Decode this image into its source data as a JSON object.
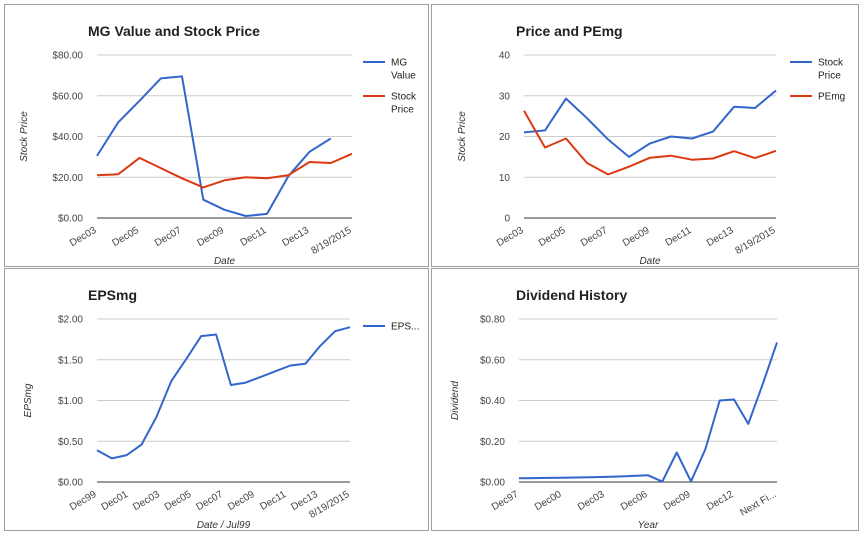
{
  "colors": {
    "blue": "#3366cc",
    "red": "#dc3912",
    "grid": "#cccccc"
  },
  "chart_data": [
    {
      "type": "line",
      "title": "MG Value and Stock Price",
      "xlabel": "Date",
      "ylabel": "Stock Price",
      "ylim": [
        0,
        80
      ],
      "yticks": [
        "$0.00",
        "$20.00",
        "$40.00",
        "$60.00",
        "$80.00"
      ],
      "xticks": [
        "Dec03",
        "Dec05",
        "Dec07",
        "Dec09",
        "Dec11",
        "Dec13",
        "8/19/2015"
      ],
      "legend": "right",
      "grid": true,
      "series": [
        {
          "name": "MG Value",
          "legend_lines": [
            "MG",
            "Value"
          ],
          "color": "#3366cc",
          "values": [
            30.5,
            47,
            57.5,
            68.5,
            69.5,
            9,
            4,
            1,
            2,
            20.5,
            32.5,
            39,
            null
          ]
        },
        {
          "name": "Stock Price",
          "legend_lines": [
            "Stock",
            "Price"
          ],
          "color": "#dc3912",
          "values": [
            21,
            21.5,
            29.5,
            24.5,
            19.5,
            15,
            18.5,
            20,
            19.5,
            21,
            27.5,
            27,
            31.5
          ]
        }
      ]
    },
    {
      "type": "line",
      "title": "Price and PEmg",
      "xlabel": "Date",
      "ylabel": "Stock Price",
      "ylim": [
        0,
        40
      ],
      "yticks": [
        "0",
        "10",
        "20",
        "30",
        "40"
      ],
      "xticks": [
        "Dec03",
        "Dec05",
        "Dec07",
        "Dec09",
        "Dec11",
        "Dec13",
        "8/19/2015"
      ],
      "legend": "right",
      "grid": true,
      "series": [
        {
          "name": "Stock Price",
          "legend_lines": [
            "Stock",
            "Price"
          ],
          "color": "#3366cc",
          "values": [
            21,
            21.5,
            29.3,
            24.5,
            19.3,
            15,
            18.3,
            20,
            19.5,
            21.2,
            27.3,
            27,
            31.3
          ]
        },
        {
          "name": "PEmg",
          "legend_lines": [
            "PEmg"
          ],
          "color": "#dc3912",
          "values": [
            26.3,
            17.3,
            19.5,
            13.5,
            10.7,
            12.6,
            14.8,
            15.3,
            14.3,
            14.6,
            16.4,
            14.7,
            16.5
          ]
        }
      ]
    },
    {
      "type": "line",
      "title": "EPSmg",
      "xlabel": "Date / Jul99",
      "ylabel": "EPSmg",
      "ylim": [
        0,
        2
      ],
      "yticks": [
        "$0.00",
        "$0.50",
        "$1.00",
        "$1.50",
        "$2.00"
      ],
      "xticks": [
        "Dec99",
        "Dec01",
        "Dec03",
        "Dec05",
        "Dec07",
        "Dec09",
        "Dec11",
        "Dec13",
        "8/19/2015"
      ],
      "legend": "right",
      "grid": true,
      "series": [
        {
          "name": "EPS...",
          "legend_lines": [
            "EPS..."
          ],
          "color": "#3366cc",
          "values": [
            0.39,
            0.29,
            0.33,
            0.46,
            0.8,
            1.24,
            1.51,
            1.79,
            1.81,
            1.19,
            1.22,
            1.29,
            1.36,
            1.43,
            1.45,
            1.67,
            1.85,
            1.9
          ]
        }
      ]
    },
    {
      "type": "line",
      "title": "Dividend History",
      "xlabel": "Year",
      "ylabel": "Dividend",
      "ylim": [
        0,
        0.8
      ],
      "yticks": [
        "$0.00",
        "$0.20",
        "$0.40",
        "$0.60",
        "$0.80"
      ],
      "xticks": [
        "Dec97",
        "Dec00",
        "Dec03",
        "Dec06",
        "Dec09",
        "Dec12",
        "Next Fi..."
      ],
      "legend": "none",
      "grid": true,
      "series": [
        {
          "name": "Dividend",
          "color": "#3366cc",
          "values": [
            0.018,
            0.019,
            0.02,
            0.021,
            0.022,
            0.023,
            0.025,
            0.027,
            0.03,
            0.033,
            0.002,
            0.145,
            0.003,
            0.16,
            0.4,
            0.405,
            0.285,
            0.48,
            0.685
          ]
        }
      ]
    }
  ]
}
